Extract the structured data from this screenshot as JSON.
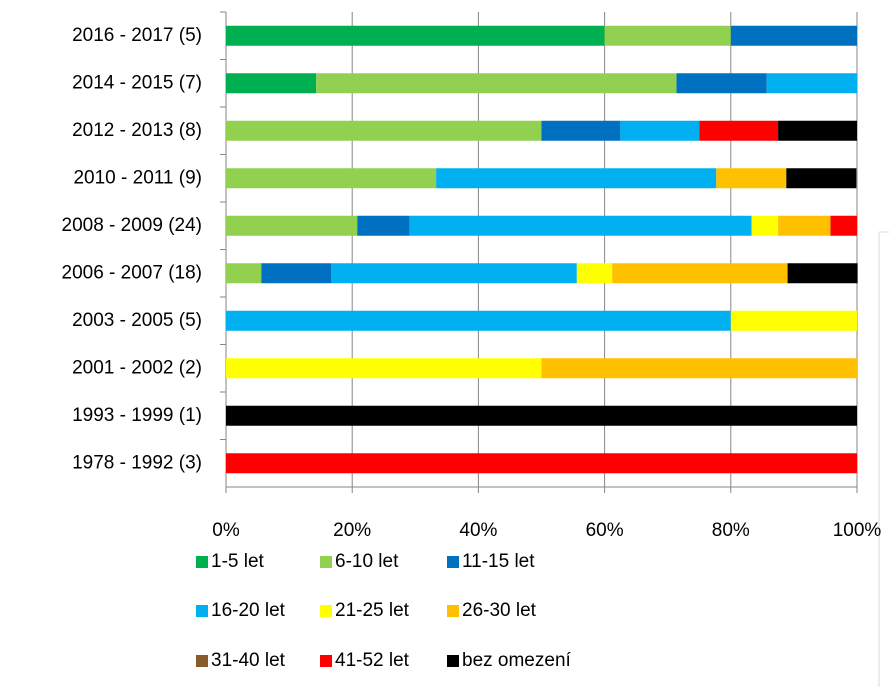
{
  "chart_data": {
    "type": "stacked-bar-horizontal",
    "categories": [
      "2016 - 2017 (5)",
      "2014 - 2015 (7)",
      "2012 - 2013 (8)",
      "2010 - 2011 (9)",
      "2008 - 2009 (24)",
      "2006 - 2007 (18)",
      "2003 - 2005 (5)",
      "2001 - 2002 (2)",
      "1993 - 1999 (1)",
      "1978 - 1992 (3)"
    ],
    "series": [
      {
        "name": "1-5 let",
        "color": "#00b050",
        "values": [
          60,
          14.3,
          0,
          0,
          0,
          0,
          0,
          0,
          0,
          0
        ]
      },
      {
        "name": "6-10 let",
        "color": "#92d050",
        "values": [
          20,
          57.1,
          50,
          33.3,
          20.8,
          5.6,
          0,
          0,
          0,
          0
        ]
      },
      {
        "name": "11-15 let",
        "color": "#0070c0",
        "values": [
          20,
          14.3,
          12.5,
          0,
          8.3,
          11.1,
          0,
          0,
          0,
          0
        ]
      },
      {
        "name": "16-20 let",
        "color": "#00b0f0",
        "values": [
          0,
          14.3,
          12.5,
          44.4,
          54.2,
          38.9,
          80,
          0,
          0,
          0
        ]
      },
      {
        "name": "21-25 let",
        "color": "#ffff00",
        "values": [
          0,
          0,
          0,
          0,
          4.2,
          5.6,
          20,
          50,
          0,
          0
        ]
      },
      {
        "name": "26-30 let",
        "color": "#ffc000",
        "values": [
          0,
          0,
          0,
          11.1,
          8.3,
          27.8,
          0,
          50,
          0,
          0
        ]
      },
      {
        "name": "31-40 let",
        "color": "#8b5a2b",
        "values": [
          0,
          0,
          0,
          0,
          0,
          0,
          0,
          0,
          0,
          0
        ]
      },
      {
        "name": "41-52 let",
        "color": "#ff0000",
        "values": [
          0,
          0,
          12.5,
          0,
          4.2,
          0,
          0,
          0,
          0,
          100
        ]
      },
      {
        "name": "bez omezení",
        "color": "#000000",
        "values": [
          0,
          0,
          12.5,
          11.1,
          0,
          11.1,
          0,
          0,
          100,
          0
        ]
      }
    ],
    "xlim": [
      0,
      100
    ],
    "xticks": [
      {
        "value": 0,
        "label": "0%"
      },
      {
        "value": 20,
        "label": "20%"
      },
      {
        "value": 40,
        "label": "40%"
      },
      {
        "value": 60,
        "label": "60%"
      },
      {
        "value": 80,
        "label": "80%"
      },
      {
        "value": 100,
        "label": "100%"
      }
    ],
    "grid": true,
    "legend": "bottom"
  }
}
